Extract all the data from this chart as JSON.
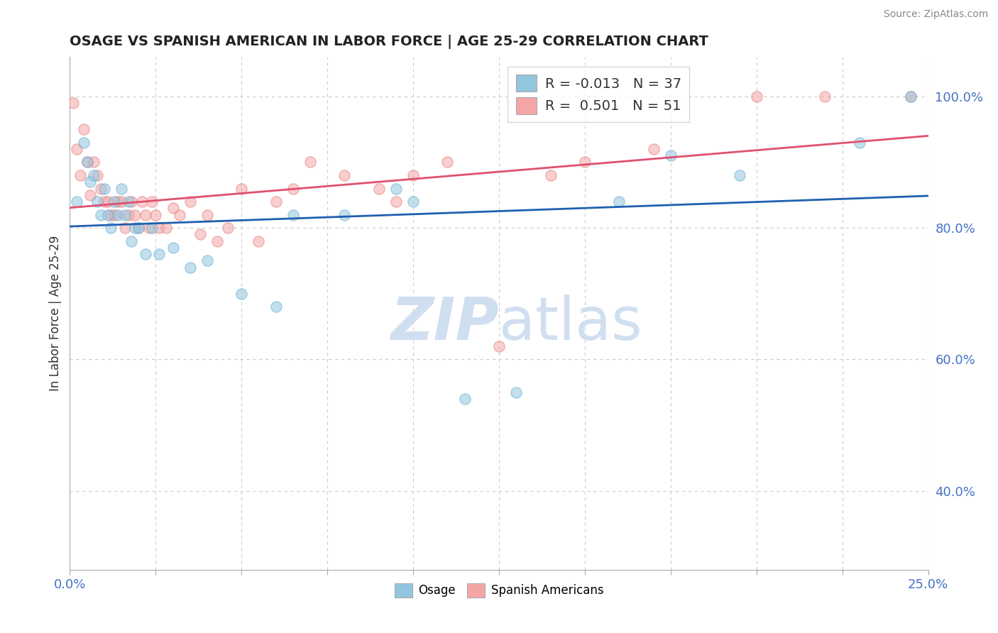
{
  "title": "OSAGE VS SPANISH AMERICAN IN LABOR FORCE | AGE 25-29 CORRELATION CHART",
  "source": "Source: ZipAtlas.com",
  "ylabel": "In Labor Force | Age 25-29",
  "xlim": [
    0.0,
    0.25
  ],
  "ylim": [
    0.28,
    1.06
  ],
  "yticks_right": [
    0.4,
    0.6,
    0.8,
    1.0
  ],
  "ytick_labels_right": [
    "40.0%",
    "60.0%",
    "80.0%",
    "100.0%"
  ],
  "xtick_positions": [
    0.0,
    0.025,
    0.05,
    0.075,
    0.1,
    0.125,
    0.15,
    0.175,
    0.2,
    0.225,
    0.25
  ],
  "xtick_labels": [
    "0.0%",
    "",
    "",
    "",
    "",
    "",
    "",
    "",
    "",
    "",
    "25.0%"
  ],
  "osage_x": [
    0.002,
    0.004,
    0.005,
    0.006,
    0.007,
    0.008,
    0.009,
    0.01,
    0.011,
    0.012,
    0.013,
    0.014,
    0.015,
    0.016,
    0.017,
    0.018,
    0.019,
    0.02,
    0.022,
    0.024,
    0.026,
    0.03,
    0.035,
    0.04,
    0.05,
    0.06,
    0.065,
    0.08,
    0.095,
    0.1,
    0.115,
    0.13,
    0.16,
    0.175,
    0.195,
    0.23,
    0.245
  ],
  "osage_y": [
    0.84,
    0.93,
    0.9,
    0.87,
    0.88,
    0.84,
    0.82,
    0.86,
    0.82,
    0.8,
    0.84,
    0.82,
    0.86,
    0.82,
    0.84,
    0.78,
    0.8,
    0.8,
    0.76,
    0.8,
    0.76,
    0.77,
    0.74,
    0.75,
    0.7,
    0.68,
    0.82,
    0.82,
    0.86,
    0.84,
    0.54,
    0.55,
    0.84,
    0.91,
    0.88,
    0.93,
    1.0
  ],
  "spanish_x": [
    0.001,
    0.002,
    0.003,
    0.004,
    0.005,
    0.006,
    0.007,
    0.008,
    0.009,
    0.01,
    0.011,
    0.012,
    0.013,
    0.014,
    0.015,
    0.016,
    0.017,
    0.018,
    0.019,
    0.02,
    0.021,
    0.022,
    0.023,
    0.024,
    0.025,
    0.026,
    0.028,
    0.03,
    0.032,
    0.035,
    0.038,
    0.04,
    0.043,
    0.046,
    0.05,
    0.055,
    0.06,
    0.065,
    0.07,
    0.08,
    0.09,
    0.095,
    0.1,
    0.11,
    0.125,
    0.14,
    0.15,
    0.17,
    0.2,
    0.22,
    0.245
  ],
  "spanish_y": [
    0.99,
    0.92,
    0.88,
    0.95,
    0.9,
    0.85,
    0.9,
    0.88,
    0.86,
    0.84,
    0.84,
    0.82,
    0.82,
    0.84,
    0.84,
    0.8,
    0.82,
    0.84,
    0.82,
    0.8,
    0.84,
    0.82,
    0.8,
    0.84,
    0.82,
    0.8,
    0.8,
    0.83,
    0.82,
    0.84,
    0.79,
    0.82,
    0.78,
    0.8,
    0.86,
    0.78,
    0.84,
    0.86,
    0.9,
    0.88,
    0.86,
    0.84,
    0.88,
    0.9,
    0.62,
    0.88,
    0.9,
    0.92,
    1.0,
    1.0,
    1.0
  ],
  "osage_color": "#92c5de",
  "spanish_color": "#f4a6a6",
  "osage_edge_color": "#6baed6",
  "spanish_edge_color": "#e88080",
  "osage_line_color": "#2060b0",
  "spanish_line_color": "#e05070",
  "osage_R": -0.013,
  "osage_N": 37,
  "spanish_R": 0.501,
  "spanish_N": 51,
  "marker_size": 120,
  "marker_alpha": 0.55,
  "background_color": "#ffffff",
  "grid_color": "#cccccc",
  "watermark_color": "#d0dff0",
  "legend_fontsize": 14
}
